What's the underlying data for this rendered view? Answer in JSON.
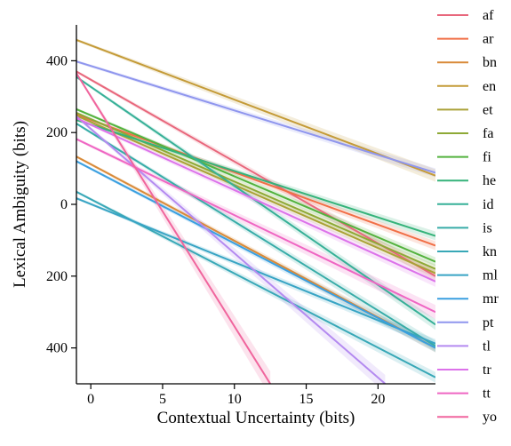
{
  "chart_data": {
    "type": "line",
    "xlabel": "Contextual Uncertainty (bits)",
    "ylabel": "Lexical Ambiguity (bits)",
    "xlim": [
      -1,
      24
    ],
    "ylim": [
      -500,
      500
    ],
    "x_ticks": [
      0,
      5,
      10,
      15,
      20
    ],
    "x_tick_labels": [
      "0",
      "5",
      "10",
      "15",
      "20"
    ],
    "y_ticks": [
      400,
      200,
      0,
      -200,
      -400
    ],
    "y_tick_labels": [
      "400",
      "200",
      "0",
      "200",
      "400"
    ],
    "grid": false,
    "legend_position": "outside-right",
    "series": [
      {
        "name": "af",
        "color": "#e8677c",
        "start": [
          -1,
          370
        ],
        "end": [
          24,
          -200
        ],
        "band": 6
      },
      {
        "name": "ar",
        "color": "#f16f47",
        "start": [
          -1,
          250
        ],
        "end": [
          24,
          -115
        ],
        "band": 5
      },
      {
        "name": "bn",
        "color": "#d98a38",
        "start": [
          -1,
          133
        ],
        "end": [
          24,
          -400
        ],
        "band": 5
      },
      {
        "name": "en",
        "color": "#c49b38",
        "start": [
          -1,
          458
        ],
        "end": [
          24,
          80
        ],
        "band": 7
      },
      {
        "name": "et",
        "color": "#aaa137",
        "start": [
          -1,
          247
        ],
        "end": [
          24,
          -192
        ],
        "band": 5
      },
      {
        "name": "fa",
        "color": "#8ea936",
        "start": [
          -1,
          255
        ],
        "end": [
          24,
          -180
        ],
        "band": 5
      },
      {
        "name": "fi",
        "color": "#53b23e",
        "start": [
          -1,
          265
        ],
        "end": [
          24,
          -160
        ],
        "band": 5
      },
      {
        "name": "he",
        "color": "#35b37a",
        "start": [
          -1,
          235
        ],
        "end": [
          24,
          -88
        ],
        "band": 5
      },
      {
        "name": "id",
        "color": "#36b097",
        "start": [
          -1,
          355
        ],
        "end": [
          24,
          -335
        ],
        "band": 6
      },
      {
        "name": "is",
        "color": "#37aca8",
        "start": [
          -1,
          225
        ],
        "end": [
          24,
          -395
        ],
        "band": 6
      },
      {
        "name": "kn",
        "color": "#38a8b7",
        "start": [
          -1,
          35
        ],
        "end": [
          24,
          -482
        ],
        "band": 6
      },
      {
        "name": "ml",
        "color": "#38a4c4",
        "start": [
          -1,
          17
        ],
        "end": [
          24,
          -388
        ],
        "band": 5
      },
      {
        "name": "mr",
        "color": "#3a9fe0",
        "start": [
          -1,
          120
        ],
        "end": [
          24,
          -400
        ],
        "band": 5
      },
      {
        "name": "pt",
        "color": "#8f96ee",
        "start": [
          -1,
          398
        ],
        "end": [
          24,
          88
        ],
        "band": 5
      },
      {
        "name": "tl",
        "color": "#b48af0",
        "start": [
          -1,
          245
        ],
        "end": [
          20.5,
          -500
        ],
        "band": 10
      },
      {
        "name": "tr",
        "color": "#dc72ea",
        "start": [
          -1,
          240
        ],
        "end": [
          24,
          -215
        ],
        "band": 6
      },
      {
        "name": "tt",
        "color": "#ef66c3",
        "start": [
          -1,
          182
        ],
        "end": [
          24,
          -300
        ],
        "band": 8
      },
      {
        "name": "yo",
        "color": "#f0659d",
        "start": [
          -1,
          365
        ],
        "end": [
          12.5,
          -500
        ],
        "band": 14
      }
    ]
  }
}
